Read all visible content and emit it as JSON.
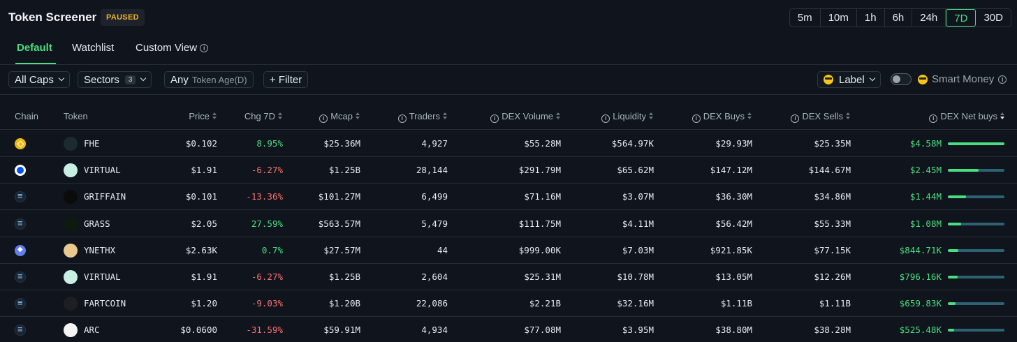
{
  "header": {
    "title": "Token Screener",
    "status_badge": "PAUSED",
    "timeframes": [
      "5m",
      "10m",
      "1h",
      "6h",
      "24h",
      "7D",
      "30D"
    ],
    "active_timeframe": "7D"
  },
  "tabs": [
    {
      "label": "Default",
      "active": true
    },
    {
      "label": "Watchlist",
      "active": false
    },
    {
      "label": "Custom View",
      "active": false
    }
  ],
  "filters": {
    "caps": "All Caps",
    "sectors": "Sectors",
    "sectors_count": "3",
    "token_age_value": "Any",
    "token_age_label": "Token Age(D)",
    "add_filter": "+ Filter",
    "label": "Label",
    "smart_money": "Smart Money"
  },
  "columns": {
    "chain": "Chain",
    "token": "Token",
    "price": "Price",
    "chg": "Chg 7D",
    "mcap": "Mcap",
    "traders": "Traders",
    "dex_volume": "DEX Volume",
    "liquidity": "Liquidity",
    "dex_buys": "DEX Buys",
    "dex_sells": "DEX Sells",
    "dex_net_buys": "DEX Net buys"
  },
  "rows": [
    {
      "chain": "bnb",
      "icon": "fhe-icon",
      "icon_color": "#1c2b2f",
      "token": "FHE",
      "price": "$0.102",
      "chg": "8.95%",
      "chg_dir": "pos",
      "mcap": "$25.36M",
      "traders": "4,927",
      "dex_volume": "$55.28M",
      "liquidity": "$564.97K",
      "dex_buys": "$29.93M",
      "dex_sells": "$25.35M",
      "net_buys": "$4.58M",
      "net_fraction": 1.0
    },
    {
      "chain": "base",
      "icon": "virtual-icon",
      "icon_color": "#c8efe4",
      "token": "VIRTUAL",
      "price": "$1.91",
      "chg": "-6.27%",
      "chg_dir": "neg",
      "mcap": "$1.25B",
      "traders": "28,144",
      "dex_volume": "$291.79M",
      "liquidity": "$65.62M",
      "dex_buys": "$147.12M",
      "dex_sells": "$144.67M",
      "net_buys": "$2.45M",
      "net_fraction": 0.54
    },
    {
      "chain": "sol",
      "icon": "griffain-icon",
      "icon_color": "#0b0b0b",
      "token": "GRIFFAIN",
      "price": "$0.101",
      "chg": "-13.36%",
      "chg_dir": "neg",
      "mcap": "$101.27M",
      "traders": "6,499",
      "dex_volume": "$71.16M",
      "liquidity": "$3.07M",
      "dex_buys": "$36.30M",
      "dex_sells": "$34.86M",
      "net_buys": "$1.44M",
      "net_fraction": 0.32
    },
    {
      "chain": "sol",
      "icon": "grass-icon",
      "icon_color": "#0f1a0f",
      "token": "GRASS",
      "price": "$2.05",
      "chg": "27.59%",
      "chg_dir": "pos",
      "mcap": "$563.57M",
      "traders": "5,479",
      "dex_volume": "$111.75M",
      "liquidity": "$4.11M",
      "dex_buys": "$56.42M",
      "dex_sells": "$55.33M",
      "net_buys": "$1.08M",
      "net_fraction": 0.24
    },
    {
      "chain": "eth",
      "icon": "ynethx-icon",
      "icon_color": "#e9c98f",
      "token": "YNETHX",
      "price": "$2.63K",
      "chg": "0.7%",
      "chg_dir": "pos",
      "mcap": "$27.57M",
      "traders": "44",
      "dex_volume": "$999.00K",
      "liquidity": "$7.03M",
      "dex_buys": "$921.85K",
      "dex_sells": "$77.15K",
      "net_buys": "$844.71K",
      "net_fraction": 0.18
    },
    {
      "chain": "sol",
      "icon": "virtual-icon",
      "icon_color": "#c8efe4",
      "token": "VIRTUAL",
      "price": "$1.91",
      "chg": "-6.27%",
      "chg_dir": "neg",
      "mcap": "$1.25B",
      "traders": "2,604",
      "dex_volume": "$25.31M",
      "liquidity": "$10.78M",
      "dex_buys": "$13.05M",
      "dex_sells": "$12.26M",
      "net_buys": "$796.16K",
      "net_fraction": 0.17
    },
    {
      "chain": "sol",
      "icon": "fartcoin-icon",
      "icon_color": "#1d1f22",
      "token": "FARTCOIN",
      "price": "$1.20",
      "chg": "-9.03%",
      "chg_dir": "neg",
      "mcap": "$1.20B",
      "traders": "22,086",
      "dex_volume": "$2.21B",
      "liquidity": "$32.16M",
      "dex_buys": "$1.11B",
      "dex_sells": "$1.11B",
      "net_buys": "$659.83K",
      "net_fraction": 0.14
    },
    {
      "chain": "sol",
      "icon": "arc-icon",
      "icon_color": "#f4f4f4",
      "token": "ARC",
      "price": "$0.0600",
      "chg": "-31.59%",
      "chg_dir": "neg",
      "mcap": "$59.91M",
      "traders": "4,934",
      "dex_volume": "$77.08M",
      "liquidity": "$3.95M",
      "dex_buys": "$38.80M",
      "dex_sells": "$38.28M",
      "net_buys": "$525.48K",
      "net_fraction": 0.11
    }
  ]
}
